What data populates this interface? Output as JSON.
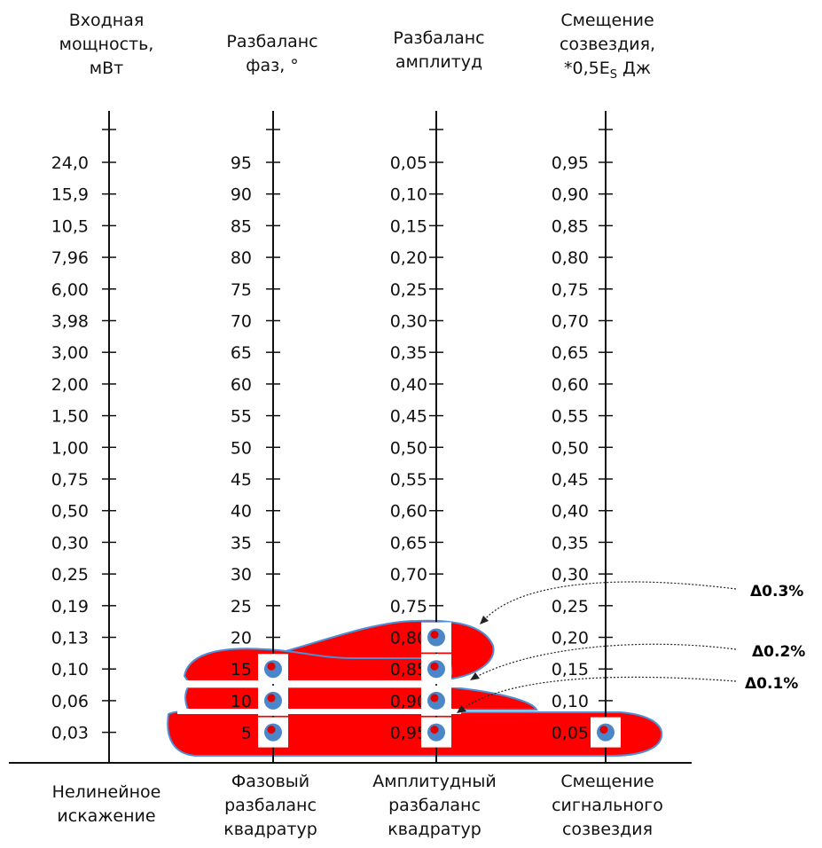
{
  "headers": [
    {
      "lines": [
        "Входная",
        "мощность,",
        "мВт"
      ]
    },
    {
      "lines": [
        "Разбаланс",
        "фаз, °"
      ]
    },
    {
      "lines": [
        "Разбаланс",
        "амплитуд"
      ]
    },
    {
      "lines": [
        "Смещение",
        "созвездия,",
        "*0,5E",
        "S",
        " Дж"
      ]
    }
  ],
  "footers": [
    {
      "lines": [
        "Нелинейное",
        "искажение"
      ]
    },
    {
      "lines": [
        "Фазовый",
        "разбаланс",
        "квадратур"
      ]
    },
    {
      "lines": [
        "Амплитудный",
        "разбаланс",
        "квадратур"
      ]
    },
    {
      "lines": [
        "Смещение",
        "сигнального",
        "созвездия"
      ]
    }
  ],
  "axes": [
    {
      "name": "input-power",
      "ticks": [
        "24,0",
        "15,9",
        "10,5",
        "7,96",
        "6,00",
        "3,98",
        "3,00",
        "2,00",
        "1,50",
        "1,00",
        "0,75",
        "0,50",
        "0,30",
        "0,25",
        "0,19",
        "0,13",
        "0,10",
        "0,06",
        "0,03"
      ]
    },
    {
      "name": "phase-imbalance",
      "ticks": [
        "95",
        "90",
        "85",
        "80",
        "75",
        "70",
        "65",
        "60",
        "55",
        "50",
        "45",
        "40",
        "35",
        "30",
        "25",
        "20",
        "15",
        "10",
        "5"
      ]
    },
    {
      "name": "amplitude-imbalance",
      "ticks": [
        "0,05",
        "0,10",
        "0,15",
        "0,20",
        "0,25",
        "0,30",
        "0,35",
        "0,40",
        "0,45",
        "0,50",
        "0,55",
        "0,60",
        "0,65",
        "0,70",
        "0,75",
        "0,80",
        "0,85",
        "0,90",
        "0,95"
      ]
    },
    {
      "name": "constellation-offset",
      "ticks": [
        "0,95",
        "0,90",
        "0,85",
        "0,80",
        "0,75",
        "0,70",
        "0,65",
        "0,60",
        "0,55",
        "0,50",
        "0,45",
        "0,40",
        "0,35",
        "0,30",
        "0,25",
        "0,20",
        "0,15",
        "0,10",
        "0,05"
      ]
    }
  ],
  "regions": [
    {
      "label": "Δ0.3%",
      "markers": [
        {
          "axis": 2,
          "value": "0,80"
        }
      ]
    },
    {
      "label": "Δ0.2%",
      "markers": [
        {
          "axis": 1,
          "value": "15"
        },
        {
          "axis": 2,
          "value": "0,85"
        }
      ]
    },
    {
      "label": "Δ0.1%",
      "markers": [
        {
          "axis": 1,
          "value": "10"
        },
        {
          "axis": 2,
          "value": "0,90"
        }
      ]
    },
    {
      "label": "",
      "markers": [
        {
          "axis": 1,
          "value": "5"
        },
        {
          "axis": 2,
          "value": "0,95"
        },
        {
          "axis": 3,
          "value": "0,05"
        }
      ]
    }
  ],
  "colors": {
    "region_fill": "#ff0000",
    "region_edge": "#4a8fd8",
    "marker_box": "#ffffff",
    "marker_outer": "#4a86c8",
    "marker_inner": "#e00000",
    "line": "#111111"
  }
}
